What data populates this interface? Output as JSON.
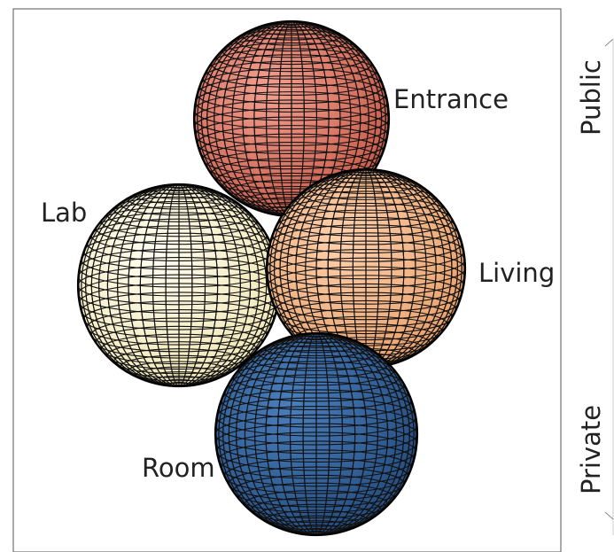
{
  "labels": {
    "entrance": "Entrance",
    "lab": "Lab",
    "living": "Living",
    "room": "Room"
  },
  "axis": {
    "top": "Public",
    "bottom": "Private"
  },
  "colors": {
    "entrance": "#e07866",
    "lab": "#fff8d6",
    "living": "#f8b98a",
    "room": "#3566a0",
    "grid": "#111111"
  }
}
